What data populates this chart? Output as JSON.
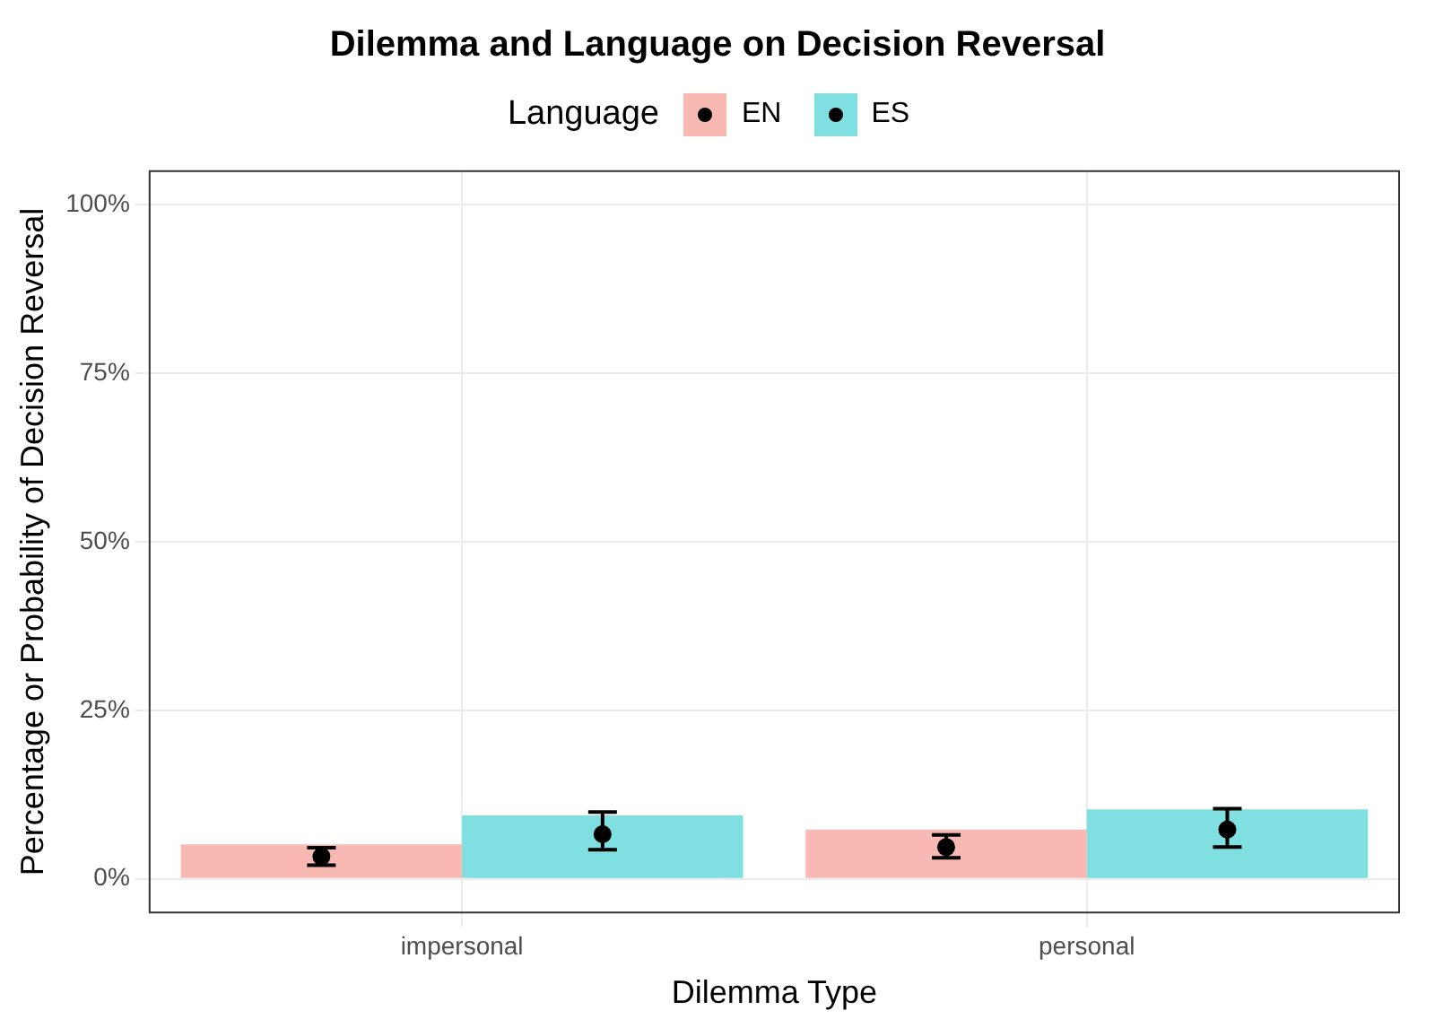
{
  "chart_data": {
    "type": "bar",
    "title": "Dilemma and Language on Decision Reversal",
    "xlabel": "Dilemma Type",
    "ylabel": "Percentage or Probability of Decision Reversal",
    "legend_title": "Language",
    "legend": "top",
    "grid": true,
    "categories": [
      "impersonal",
      "personal"
    ],
    "ylim": [
      -5,
      105
    ],
    "yticks": [
      {
        "value": 0,
        "label": "0%"
      },
      {
        "value": 25,
        "label": "25%"
      },
      {
        "value": 50,
        "label": "50%"
      },
      {
        "value": 75,
        "label": "75%"
      },
      {
        "value": 100,
        "label": "100%"
      }
    ],
    "series": [
      {
        "name": "EN",
        "color": "#f8b9b3",
        "values": [
          5.1,
          7.3
        ]
      },
      {
        "name": "ES",
        "color": "#80dfe0",
        "values": [
          9.4,
          10.3
        ]
      },
      {
        "type": "scatter",
        "color": "#000000",
        "values": [
          3.3,
          4.7
        ],
        "errors": [
          [
            2.0,
            4.6
          ],
          [
            3.1,
            6.5
          ]
        ]
      },
      {
        "type": "scatter",
        "color": "#000000",
        "values": [
          6.6,
          7.3
        ],
        "errors": [
          [
            4.3,
            9.9
          ],
          [
            4.7,
            10.4
          ]
        ]
      }
    ]
  }
}
